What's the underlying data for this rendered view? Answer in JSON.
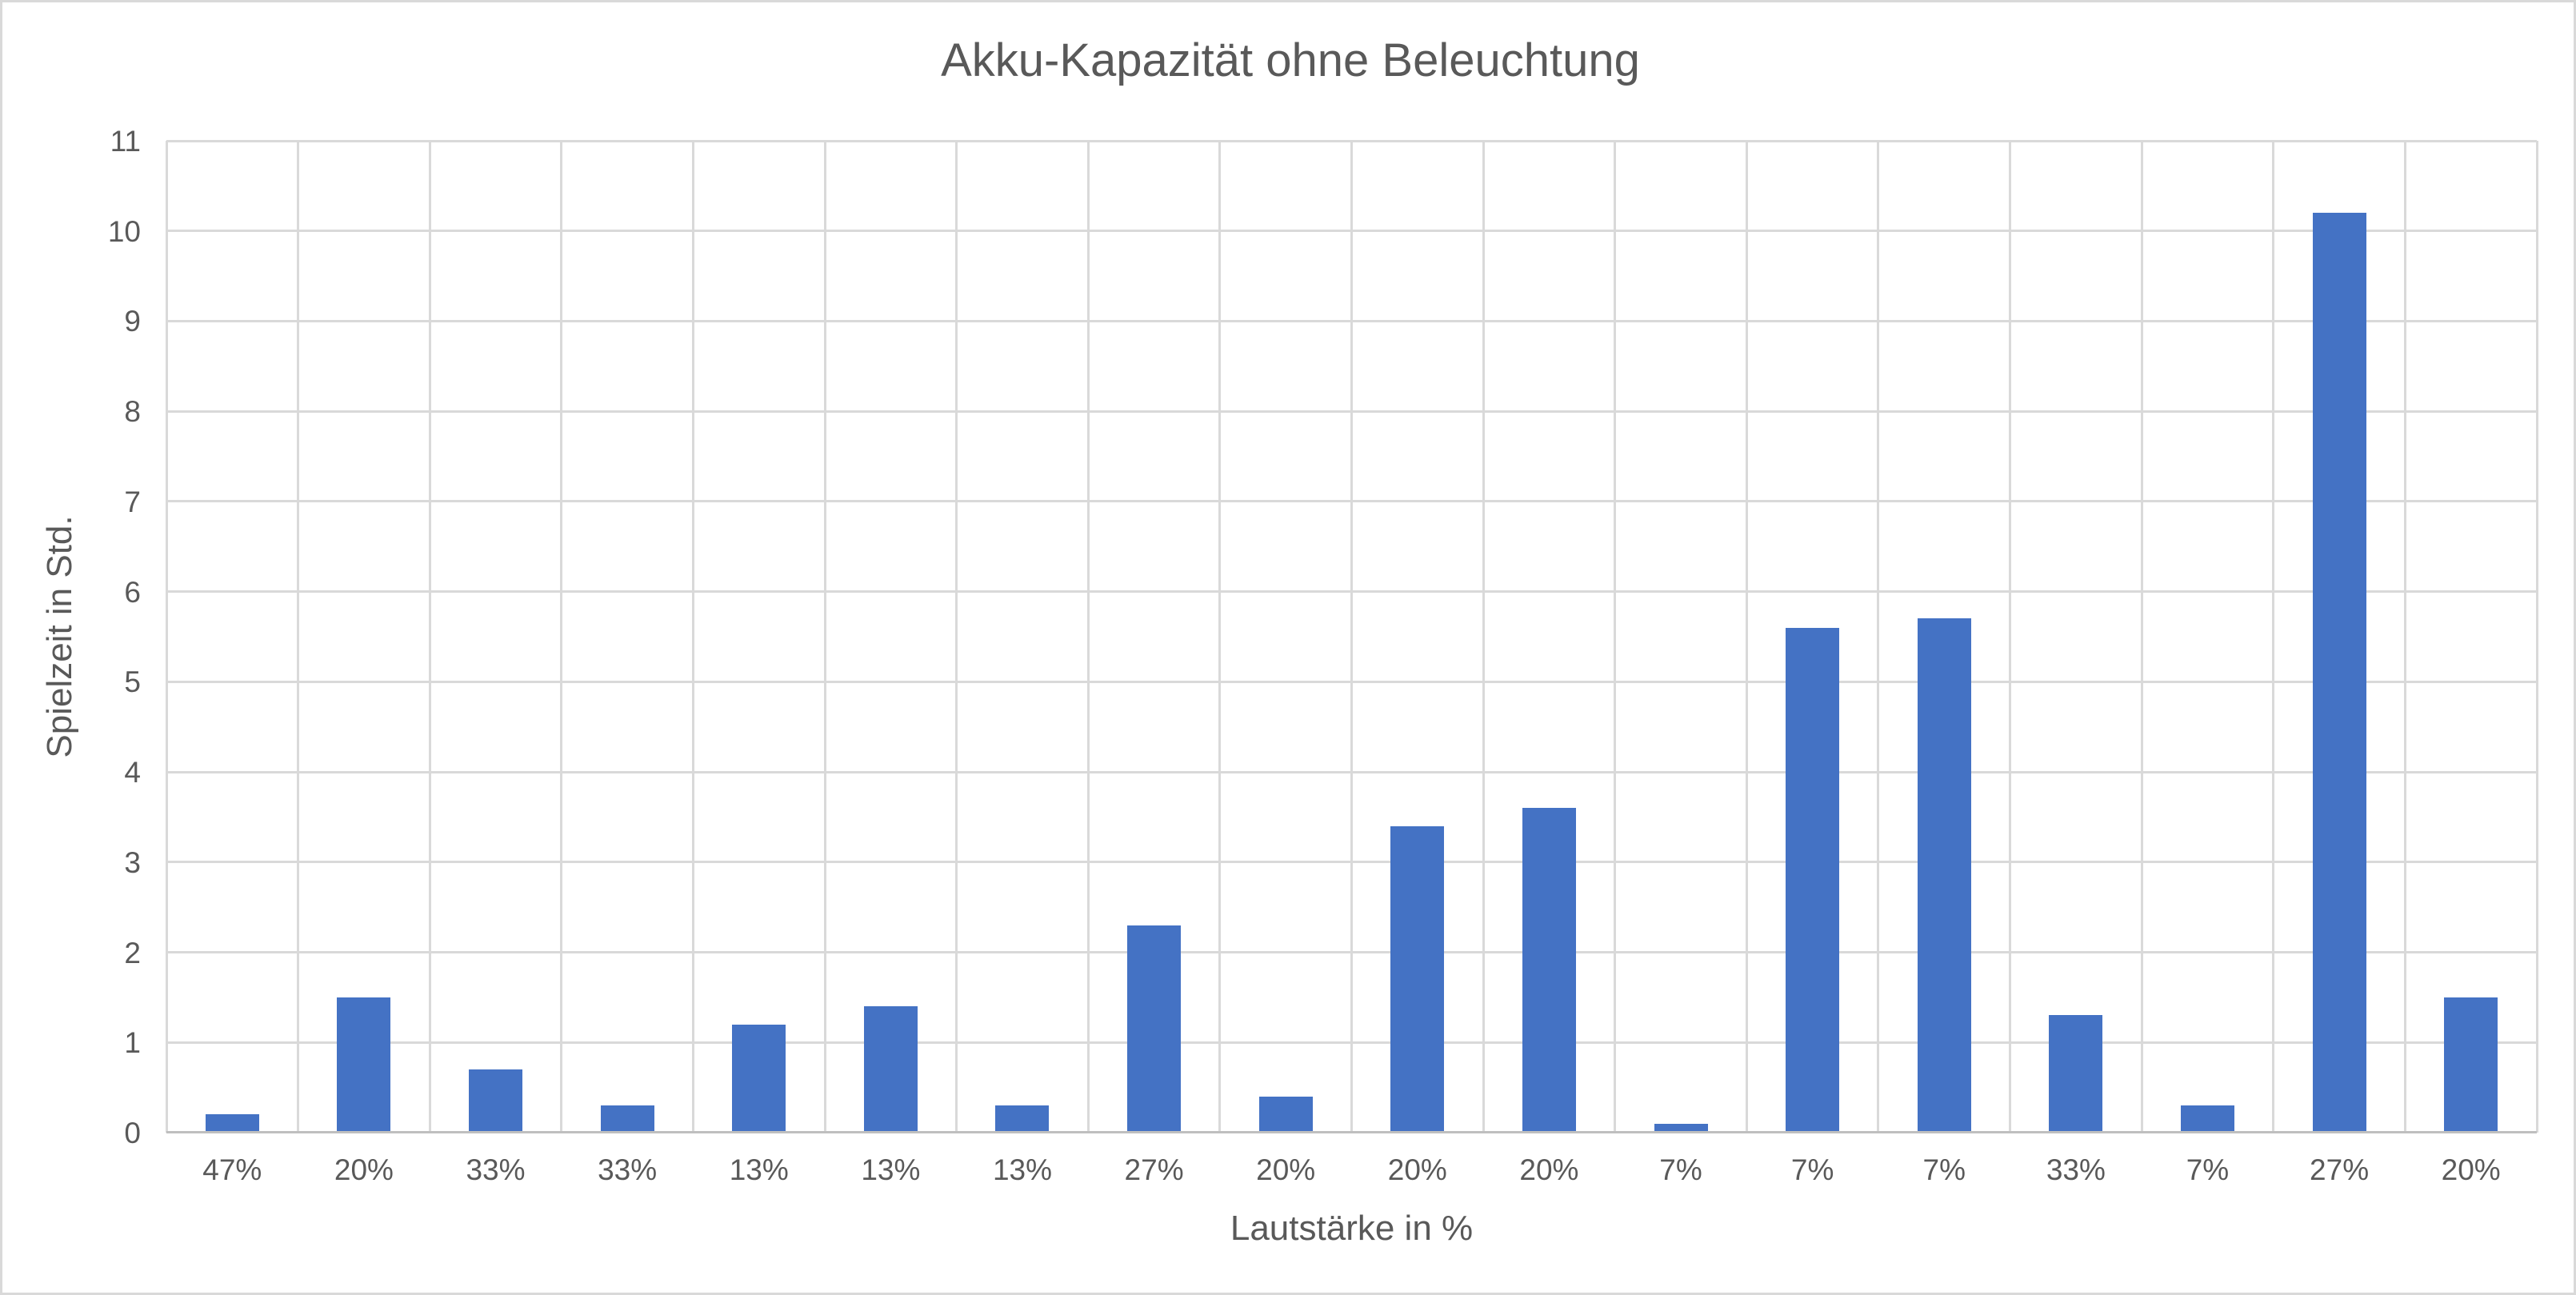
{
  "chart_data": {
    "type": "bar",
    "title": "Akku-Kapazität ohne Beleuchtung",
    "xlabel": "Lautstärke in %",
    "ylabel": "Spielzeit in Std.",
    "categories": [
      "47%",
      "20%",
      "33%",
      "33%",
      "13%",
      "13%",
      "13%",
      "27%",
      "20%",
      "20%",
      "20%",
      "7%",
      "7%",
      "7%",
      "33%",
      "7%",
      "27%",
      "20%"
    ],
    "values": [
      0.2,
      1.5,
      0.7,
      0.3,
      1.2,
      1.4,
      0.3,
      2.3,
      0.4,
      3.4,
      3.6,
      0.1,
      5.6,
      5.7,
      1.3,
      0.3,
      10.2,
      1.5
    ],
    "ylim": [
      0,
      11
    ],
    "yticks": [
      0,
      1,
      2,
      3,
      4,
      5,
      6,
      7,
      8,
      9,
      10,
      11
    ],
    "grid": true,
    "legend_position": "none",
    "colors": {
      "bar": "#4472C4",
      "gridline": "#D9D9D9",
      "axis_line": "#BFBFBF",
      "text": "#595959",
      "background": "#FFFFFF",
      "canvas_border": "#D9D9D9"
    }
  }
}
